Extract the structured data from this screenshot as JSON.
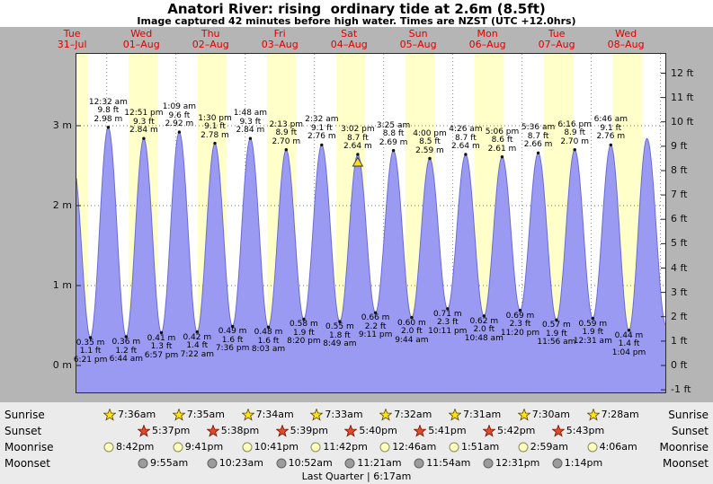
{
  "header": {
    "title": "Anatori River: rising  ordinary tide at 2.6m (8.5ft)",
    "subtitle": "Image captured 42 minutes before high water. Times are NZST (UTC +12.0hrs)"
  },
  "days": [
    {
      "name": "Tue",
      "date": "31–Jul"
    },
    {
      "name": "Wed",
      "date": "01–Aug"
    },
    {
      "name": "Thu",
      "date": "02–Aug"
    },
    {
      "name": "Fri",
      "date": "03–Aug"
    },
    {
      "name": "Sat",
      "date": "04–Aug"
    },
    {
      "name": "Sun",
      "date": "05–Aug"
    },
    {
      "name": "Mon",
      "date": "06–Aug"
    },
    {
      "name": "Tue",
      "date": "07–Aug"
    },
    {
      "name": "Wed",
      "date": "08–Aug"
    }
  ],
  "y_axis": {
    "left": [
      "0 m",
      "1 m",
      "2 m",
      "3 m"
    ],
    "right": [
      "-1 ft",
      "0 ft",
      "1 ft",
      "2 ft",
      "3 ft",
      "4 ft",
      "5 ft",
      "6 ft",
      "7 ft",
      "8 ft",
      "9 ft",
      "10 ft",
      "11 ft",
      "12 ft"
    ]
  },
  "chart_data": {
    "type": "area",
    "title": "Anatori River tide height",
    "y_left_unit": "m",
    "y_right_unit": "ft",
    "ylim_m": [
      -0.35,
      3.9
    ],
    "extremes": [
      {
        "kind": "low",
        "day": 0,
        "time": "6:21 pm",
        "ft": "1.1 ft",
        "m": "0.35 m"
      },
      {
        "kind": "high",
        "day": 1,
        "time": "12:32 am",
        "ft": "9.8 ft",
        "m": "2.98 m"
      },
      {
        "kind": "low",
        "day": 1,
        "time": "6:44 am",
        "ft": "1.2 ft",
        "m": "0.36 m"
      },
      {
        "kind": "high",
        "day": 1,
        "time": "12:51 pm",
        "ft": "9.3 ft",
        "m": "2.84 m"
      },
      {
        "kind": "low",
        "day": 1,
        "time": "6:57 pm",
        "ft": "1.3 ft",
        "m": "0.41 m"
      },
      {
        "kind": "high",
        "day": 2,
        "time": "1:09 am",
        "ft": "9.6 ft",
        "m": "2.92 m"
      },
      {
        "kind": "low",
        "day": 2,
        "time": "7:22 am",
        "ft": "1.4 ft",
        "m": "0.42 m"
      },
      {
        "kind": "high",
        "day": 2,
        "time": "1:30 pm",
        "ft": "9.1 ft",
        "m": "2.78 m"
      },
      {
        "kind": "low",
        "day": 2,
        "time": "7:36 pm",
        "ft": "1.6 ft",
        "m": "0.49 m"
      },
      {
        "kind": "high",
        "day": 3,
        "time": "1:48 am",
        "ft": "9.3 ft",
        "m": "2.84 m"
      },
      {
        "kind": "low",
        "day": 3,
        "time": "8:03 am",
        "ft": "1.6 ft",
        "m": "0.48 m"
      },
      {
        "kind": "high",
        "day": 3,
        "time": "2:13 pm",
        "ft": "8.9 ft",
        "m": "2.70 m"
      },
      {
        "kind": "low",
        "day": 3,
        "time": "8:20 pm",
        "ft": "1.9 ft",
        "m": "0.58 m"
      },
      {
        "kind": "high",
        "day": 4,
        "time": "2:32 am",
        "ft": "9.1 ft",
        "m": "2.76 m"
      },
      {
        "kind": "low",
        "day": 4,
        "time": "8:49 am",
        "ft": "1.8 ft",
        "m": "0.55 m"
      },
      {
        "kind": "high",
        "day": 4,
        "time": "3:02 pm",
        "ft": "8.7 ft",
        "m": "2.64 m",
        "current": true
      },
      {
        "kind": "low",
        "day": 4,
        "time": "9:11 pm",
        "ft": "2.2 ft",
        "m": "0.66 m"
      },
      {
        "kind": "high",
        "day": 5,
        "time": "3:25 am",
        "ft": "8.8 ft",
        "m": "2.69 m"
      },
      {
        "kind": "low",
        "day": 5,
        "time": "9:44 am",
        "ft": "2.0 ft",
        "m": "0.60 m"
      },
      {
        "kind": "high",
        "day": 5,
        "time": "4:00 pm",
        "ft": "8.5 ft",
        "m": "2.59 m"
      },
      {
        "kind": "low",
        "day": 5,
        "time": "10:11 pm",
        "ft": "2.3 ft",
        "m": "0.71 m"
      },
      {
        "kind": "high",
        "day": 6,
        "time": "4:26 am",
        "ft": "8.7 ft",
        "m": "2.64 m"
      },
      {
        "kind": "low",
        "day": 6,
        "time": "10:48 am",
        "ft": "2.0 ft",
        "m": "0.62 m"
      },
      {
        "kind": "high",
        "day": 6,
        "time": "5:06 pm",
        "ft": "8.6 ft",
        "m": "2.61 m"
      },
      {
        "kind": "low",
        "day": 6,
        "time": "11:20 pm",
        "ft": "2.3 ft",
        "m": "0.69 m"
      },
      {
        "kind": "high",
        "day": 7,
        "time": "5:36 am",
        "ft": "8.7 ft",
        "m": "2.66 m"
      },
      {
        "kind": "low",
        "day": 7,
        "time": "11:56 am",
        "ft": "1.9 ft",
        "m": "0.57 m"
      },
      {
        "kind": "high",
        "day": 7,
        "time": "6:16 pm",
        "ft": "8.9 ft",
        "m": "2.70 m"
      },
      {
        "kind": "low",
        "day": 8,
        "time": "12:31 am",
        "ft": "1.9 ft",
        "m": "0.59 m"
      },
      {
        "kind": "high",
        "day": 8,
        "time": "6:46 am",
        "ft": "9.1 ft",
        "m": "2.76 m"
      },
      {
        "kind": "low",
        "day": 8,
        "time": "1:04 pm",
        "ft": "1.4 ft",
        "m": "0.44 m"
      }
    ]
  },
  "sun_moon": {
    "rows": [
      {
        "id": "sunrise",
        "label": "Sunrise",
        "times": [
          "7:36am",
          "7:35am",
          "7:34am",
          "7:33am",
          "7:32am",
          "7:31am",
          "7:30am",
          "7:28am"
        ]
      },
      {
        "id": "sunset",
        "label": "Sunset",
        "times": [
          "5:37pm",
          "5:38pm",
          "5:39pm",
          "5:40pm",
          "5:41pm",
          "5:42pm",
          "5:43pm"
        ]
      },
      {
        "id": "moonrise",
        "label": "Moonrise",
        "times": [
          "8:42pm",
          "9:41pm",
          "10:41pm",
          "11:42pm",
          "12:46am",
          "1:51am",
          "2:59am",
          "4:06am"
        ]
      },
      {
        "id": "moonset",
        "label": "Moonset",
        "times": [
          "9:55am",
          "10:23am",
          "10:52am",
          "11:21am",
          "11:54am",
          "12:31pm",
          "1:14pm"
        ]
      }
    ],
    "moon_phase": "Last Quarter | 6:17am"
  },
  "colors": {
    "date_text": "#e00000",
    "tide_fill": "#9a9af2",
    "tide_stroke": "#6b6bd6",
    "daylight": "#ffffc9",
    "panel": "#b5b5b5",
    "bottom_panel": "#ebebeb",
    "plot_bg": "#ffffff",
    "sunrise_star": "#ffe11a",
    "sunset_star": "#e04a2e",
    "moonrise_circle": "#ffffbb",
    "moonset_circle": "#9c9c9c",
    "marker": "#ffdf1a"
  }
}
